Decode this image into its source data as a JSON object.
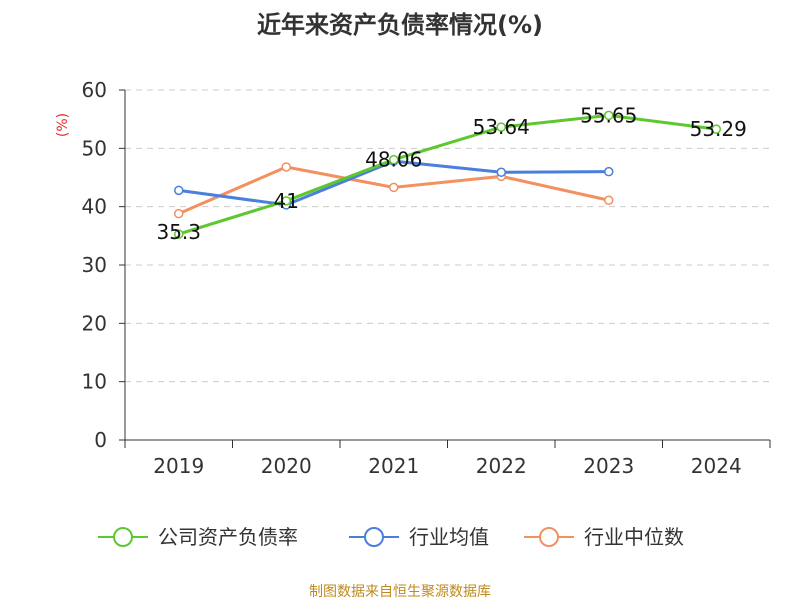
{
  "chart_data": {
    "type": "line",
    "title": "近年来资产负债率情况(%)",
    "ylabel": "(%)",
    "xlabel": "",
    "categories": [
      "2019",
      "2020",
      "2021",
      "2022",
      "2023",
      "2024"
    ],
    "ylim": [
      0,
      60
    ],
    "yticks": [
      0,
      10,
      20,
      30,
      40,
      50,
      60
    ],
    "grid": true,
    "legend_position": "bottom",
    "series": [
      {
        "name": "公司资产负债率",
        "color": "#5cc82e",
        "values": [
          35.3,
          41,
          48.06,
          53.64,
          55.65,
          53.29
        ],
        "labels": [
          "35.3",
          "41",
          "48.06",
          "53.64",
          "55.65",
          "53.29"
        ]
      },
      {
        "name": "行业均值",
        "color": "#4a7fdc",
        "values": [
          42.8,
          40.3,
          47.8,
          45.9,
          46.0,
          null
        ]
      },
      {
        "name": "行业中位数",
        "color": "#f39060",
        "values": [
          38.8,
          46.8,
          43.3,
          45.2,
          41.1,
          null
        ]
      }
    ]
  },
  "source": "制图数据来自恒生聚源数据库"
}
